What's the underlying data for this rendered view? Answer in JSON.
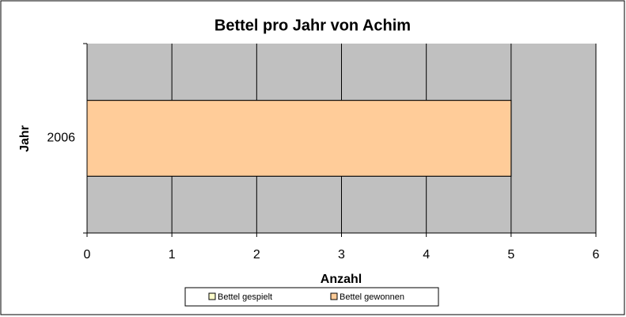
{
  "chart_data": {
    "type": "hbar",
    "title": "Bettel pro Jahr von Achim",
    "categories": [
      "2006"
    ],
    "series": [
      {
        "name": "Bettel gespielt",
        "color": "#FFFFCC",
        "values": [
          5
        ]
      },
      {
        "name": "Bettel gewonnen",
        "color": "#FFCC99",
        "values": [
          5
        ]
      }
    ],
    "x_label": "Anzahl",
    "y_label": "Jahr",
    "xlim": [
      0,
      6
    ],
    "xticks": [
      0,
      1,
      2,
      3,
      4,
      5,
      6
    ],
    "grid": true,
    "plot_background": "#C0C0C0",
    "legend": "bottom"
  }
}
